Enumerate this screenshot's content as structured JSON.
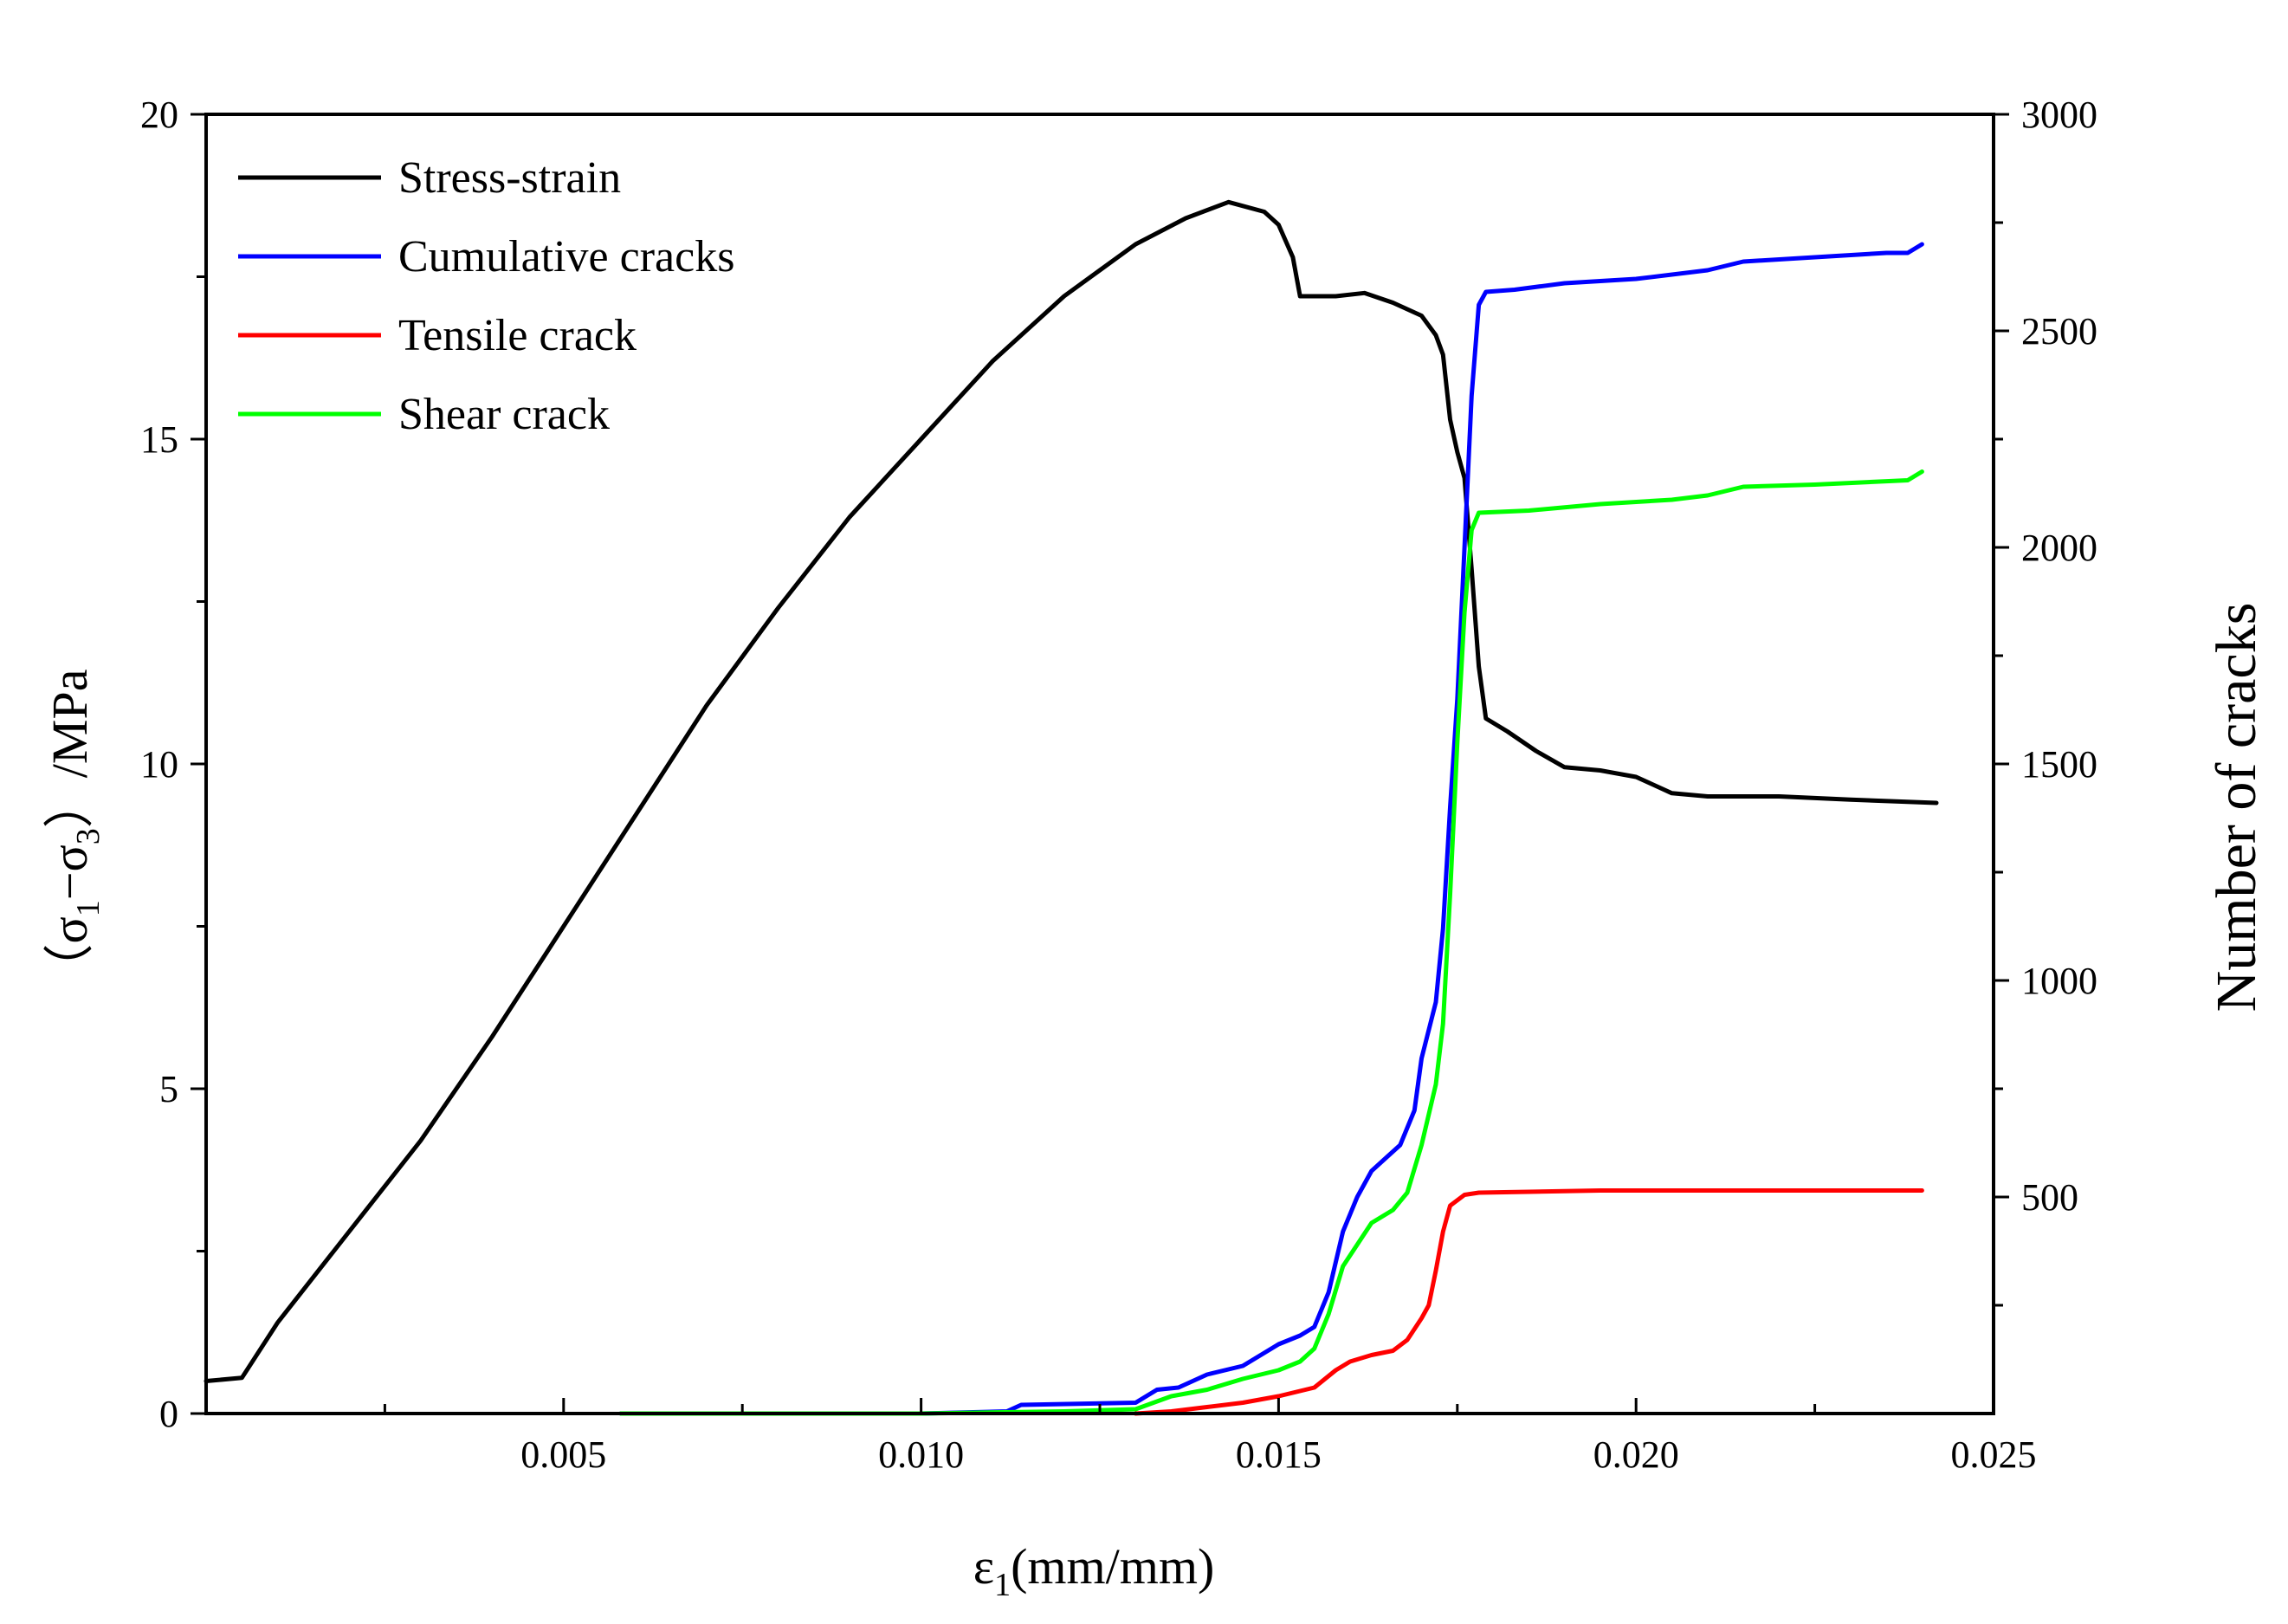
{
  "chart_data": {
    "type": "line",
    "title": "",
    "xlabel": {
      "symbol": "ε",
      "sub": "1",
      "unit": "(mm/mm)"
    },
    "ylabel_left": {
      "open": "（σ",
      "sub1": "1",
      "mid": "−σ",
      "sub2": "3",
      "close": "）/MPa"
    },
    "ylabel_right": "Number of cracks",
    "xlim": [
      0,
      0.025
    ],
    "ylim_left": [
      0,
      20
    ],
    "ylim_right": [
      0,
      3000
    ],
    "x_ticks": [
      "0.005",
      "0.010",
      "0.015",
      "0.020",
      "0.025"
    ],
    "y_ticks_left": [
      "0",
      "5",
      "10",
      "15",
      "20"
    ],
    "y_ticks_right": [
      "500",
      "1000",
      "1500",
      "2000",
      "2500",
      "3000"
    ],
    "legend_position": "top-left",
    "series": [
      {
        "name": "Stress-strain",
        "axis": "left",
        "color": "#000000",
        "points": [
          [
            0.0,
            0.5
          ],
          [
            0.0005,
            0.55
          ],
          [
            0.001,
            1.4
          ],
          [
            0.002,
            2.8
          ],
          [
            0.003,
            4.2
          ],
          [
            0.004,
            5.8
          ],
          [
            0.005,
            7.5
          ],
          [
            0.006,
            9.2
          ],
          [
            0.007,
            10.9
          ],
          [
            0.008,
            12.4
          ],
          [
            0.009,
            13.8
          ],
          [
            0.01,
            15.0
          ],
          [
            0.011,
            16.2
          ],
          [
            0.012,
            17.2
          ],
          [
            0.013,
            18.0
          ],
          [
            0.0137,
            18.4
          ],
          [
            0.0143,
            18.65
          ],
          [
            0.0148,
            18.5
          ],
          [
            0.015,
            18.3
          ],
          [
            0.0152,
            17.8
          ],
          [
            0.0153,
            17.2
          ],
          [
            0.0158,
            17.2
          ],
          [
            0.0162,
            17.25
          ],
          [
            0.0166,
            17.1
          ],
          [
            0.017,
            16.9
          ],
          [
            0.0172,
            16.6
          ],
          [
            0.0173,
            16.3
          ],
          [
            0.0174,
            15.3
          ],
          [
            0.0175,
            14.8
          ],
          [
            0.0176,
            14.4
          ],
          [
            0.0177,
            13.0
          ],
          [
            0.0178,
            11.5
          ],
          [
            0.0179,
            10.7
          ],
          [
            0.0182,
            10.5
          ],
          [
            0.0186,
            10.2
          ],
          [
            0.019,
            9.95
          ],
          [
            0.0195,
            9.9
          ],
          [
            0.02,
            9.8
          ],
          [
            0.0202,
            9.7
          ],
          [
            0.0205,
            9.55
          ],
          [
            0.021,
            9.5
          ],
          [
            0.022,
            9.5
          ],
          [
            0.023,
            9.45
          ],
          [
            0.0242,
            9.4
          ]
        ]
      },
      {
        "name": "Cumulative cracks",
        "axis": "right",
        "color": "#0000ff",
        "points": [
          [
            0.0058,
            0
          ],
          [
            0.01,
            0
          ],
          [
            0.0112,
            5
          ],
          [
            0.0114,
            20
          ],
          [
            0.013,
            25
          ],
          [
            0.0133,
            55
          ],
          [
            0.0136,
            60
          ],
          [
            0.014,
            90
          ],
          [
            0.0145,
            110
          ],
          [
            0.0148,
            140
          ],
          [
            0.015,
            160
          ],
          [
            0.0153,
            180
          ],
          [
            0.0155,
            200
          ],
          [
            0.0157,
            280
          ],
          [
            0.0159,
            420
          ],
          [
            0.0161,
            500
          ],
          [
            0.0163,
            560
          ],
          [
            0.0165,
            590
          ],
          [
            0.0167,
            620
          ],
          [
            0.0169,
            700
          ],
          [
            0.017,
            820
          ],
          [
            0.0172,
            950
          ],
          [
            0.0173,
            1120
          ],
          [
            0.0174,
            1400
          ],
          [
            0.0175,
            1650
          ],
          [
            0.0176,
            2000
          ],
          [
            0.0177,
            2350
          ],
          [
            0.0178,
            2560
          ],
          [
            0.0179,
            2590
          ],
          [
            0.0183,
            2595
          ],
          [
            0.019,
            2610
          ],
          [
            0.02,
            2620
          ],
          [
            0.021,
            2640
          ],
          [
            0.0215,
            2660
          ],
          [
            0.0225,
            2670
          ],
          [
            0.0235,
            2680
          ],
          [
            0.0238,
            2680
          ],
          [
            0.024,
            2700
          ]
        ]
      },
      {
        "name": "Tensile crack",
        "axis": "right",
        "color": "#ff0000",
        "points": [
          [
            0.013,
            0
          ],
          [
            0.0135,
            5
          ],
          [
            0.014,
            15
          ],
          [
            0.0145,
            25
          ],
          [
            0.015,
            40
          ],
          [
            0.0155,
            60
          ],
          [
            0.0158,
            100
          ],
          [
            0.016,
            120
          ],
          [
            0.0163,
            135
          ],
          [
            0.0166,
            145
          ],
          [
            0.0168,
            170
          ],
          [
            0.017,
            220
          ],
          [
            0.0171,
            250
          ],
          [
            0.0172,
            330
          ],
          [
            0.0173,
            420
          ],
          [
            0.0174,
            480
          ],
          [
            0.0176,
            505
          ],
          [
            0.0178,
            510
          ],
          [
            0.0185,
            512
          ],
          [
            0.0195,
            515
          ],
          [
            0.021,
            515
          ],
          [
            0.024,
            515
          ]
        ]
      },
      {
        "name": "Shear crack",
        "axis": "right",
        "color": "#00ff00",
        "points": [
          [
            0.0058,
            0
          ],
          [
            0.01,
            0
          ],
          [
            0.012,
            5
          ],
          [
            0.013,
            10
          ],
          [
            0.0135,
            40
          ],
          [
            0.014,
            55
          ],
          [
            0.0145,
            80
          ],
          [
            0.015,
            100
          ],
          [
            0.0153,
            120
          ],
          [
            0.0155,
            150
          ],
          [
            0.0157,
            230
          ],
          [
            0.0159,
            340
          ],
          [
            0.0161,
            390
          ],
          [
            0.0163,
            440
          ],
          [
            0.0166,
            470
          ],
          [
            0.0168,
            510
          ],
          [
            0.017,
            620
          ],
          [
            0.0172,
            760
          ],
          [
            0.0173,
            900
          ],
          [
            0.0174,
            1200
          ],
          [
            0.0175,
            1550
          ],
          [
            0.0176,
            1850
          ],
          [
            0.0177,
            2040
          ],
          [
            0.0178,
            2080
          ],
          [
            0.0185,
            2085
          ],
          [
            0.0195,
            2100
          ],
          [
            0.0205,
            2110
          ],
          [
            0.021,
            2120
          ],
          [
            0.0215,
            2140
          ],
          [
            0.0225,
            2145
          ],
          [
            0.0238,
            2155
          ],
          [
            0.024,
            2175
          ]
        ]
      }
    ]
  }
}
